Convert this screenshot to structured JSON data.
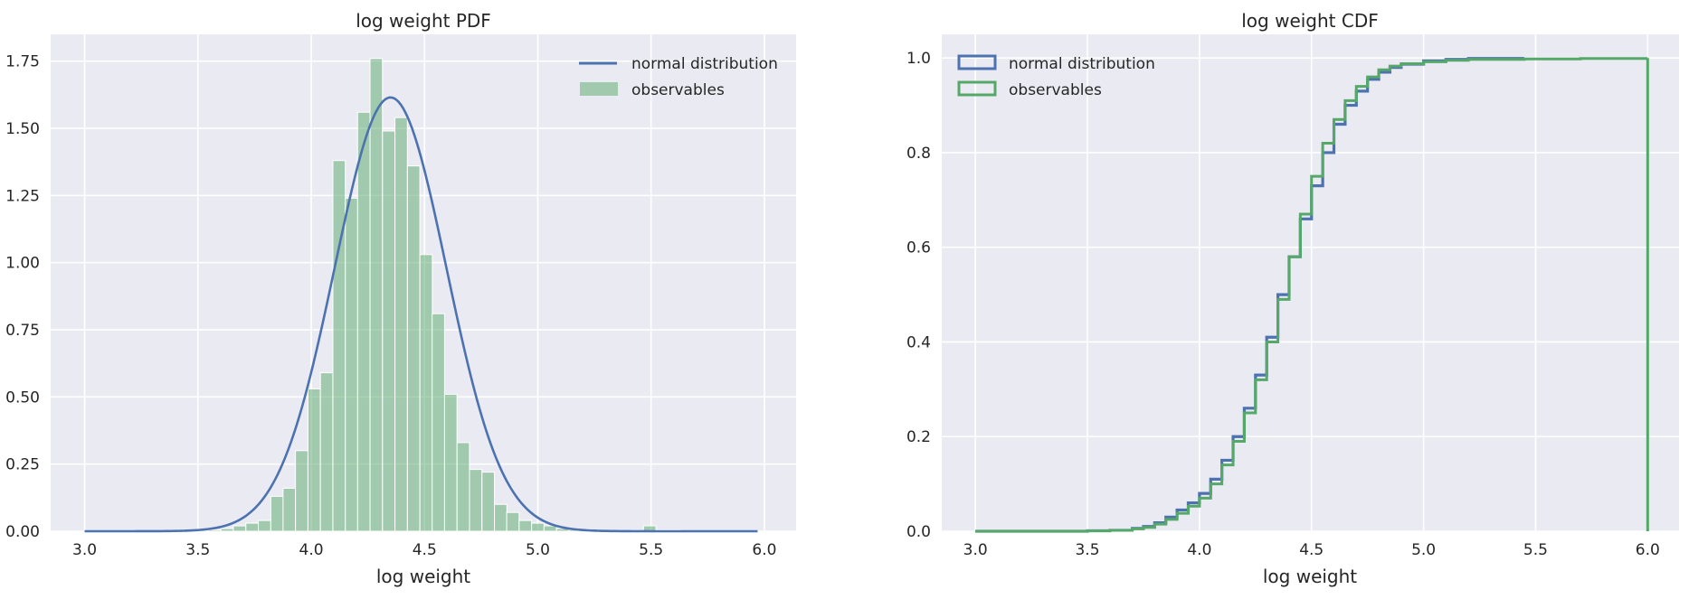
{
  "chart_data": [
    {
      "type": "bar",
      "title": "log weight PDF",
      "xlabel": "log weight",
      "ylabel": "",
      "xlim": [
        2.85,
        6.14
      ],
      "ylim": [
        0,
        1.85
      ],
      "xticks": [
        "3.0",
        "3.5",
        "4.0",
        "4.5",
        "5.0",
        "5.5",
        "6.0"
      ],
      "xtick_values": [
        3.0,
        3.5,
        4.0,
        4.5,
        5.0,
        5.5,
        6.0
      ],
      "yticks": [
        "0.00",
        "0.25",
        "0.50",
        "0.75",
        "1.00",
        "1.25",
        "1.50",
        "1.75"
      ],
      "ytick_values": [
        0,
        0.25,
        0.5,
        0.75,
        1.0,
        1.25,
        1.5,
        1.75
      ],
      "grid": true,
      "legend_position": "top-right",
      "legend": [
        {
          "label": "normal distribution",
          "kind": "line",
          "color": "#4c72b0"
        },
        {
          "label": "observables",
          "kind": "patch",
          "color": "#55a868"
        }
      ],
      "bar_color": "#55a868",
      "line_color": "#4c72b0",
      "bin_width": 0.0548,
      "bin_centers": [
        3.574,
        3.629,
        3.684,
        3.739,
        3.794,
        3.849,
        3.903,
        3.958,
        4.013,
        4.068,
        4.123,
        4.178,
        4.232,
        4.287,
        4.342,
        4.397,
        4.452,
        4.507,
        4.561,
        4.616,
        4.671,
        4.726,
        4.781,
        4.836,
        4.89,
        4.945,
        5.0,
        5.055,
        5.11,
        5.165,
        5.219,
        5.274,
        5.329,
        5.384,
        5.439,
        5.494,
        5.548,
        5.603
      ],
      "values": [
        0.005,
        0.01,
        0.02,
        0.03,
        0.04,
        0.13,
        0.16,
        0.3,
        0.53,
        0.59,
        1.38,
        1.24,
        1.56,
        1.76,
        1.49,
        1.54,
        1.36,
        1.03,
        0.81,
        0.51,
        0.33,
        0.23,
        0.22,
        0.1,
        0.07,
        0.04,
        0.03,
        0.02,
        0.01,
        0.005,
        0.0,
        0.0,
        0.0,
        0.0,
        0.005,
        0.02,
        0.005,
        0.005
      ],
      "normal_mean": 4.35,
      "normal_sd": 0.247,
      "normal_x_range": [
        3.0,
        5.97
      ]
    },
    {
      "type": "line",
      "title": "log weight CDF",
      "xlabel": "log weight",
      "ylabel": "",
      "xlim": [
        2.85,
        6.14
      ],
      "ylim": [
        0,
        1.05
      ],
      "xticks": [
        "3.0",
        "3.5",
        "4.0",
        "4.5",
        "5.0",
        "5.5",
        "6.0"
      ],
      "xtick_values": [
        3.0,
        3.5,
        4.0,
        4.5,
        5.0,
        5.5,
        6.0
      ],
      "yticks": [
        "0.0",
        "0.2",
        "0.4",
        "0.6",
        "0.8",
        "1.0"
      ],
      "ytick_values": [
        0,
        0.2,
        0.4,
        0.6,
        0.8,
        1.0
      ],
      "grid": true,
      "legend_position": "top-left",
      "legend": [
        {
          "label": "normal distribution",
          "kind": "patch-outline",
          "color": "#4c72b0"
        },
        {
          "label": "observables",
          "kind": "patch-outline",
          "color": "#55a868"
        }
      ],
      "series": [
        {
          "name": "normal distribution",
          "color": "#4c72b0",
          "x": [
            3.0,
            3.5,
            3.6,
            3.7,
            3.75,
            3.8,
            3.85,
            3.9,
            3.95,
            4.0,
            4.05,
            4.1,
            4.15,
            4.2,
            4.25,
            4.3,
            4.35,
            4.4,
            4.45,
            4.5,
            4.55,
            4.6,
            4.65,
            4.7,
            4.75,
            4.8,
            4.85,
            4.9,
            5.0,
            5.1,
            5.2,
            5.45
          ],
          "y": [
            0.0,
            0.001,
            0.002,
            0.006,
            0.01,
            0.018,
            0.03,
            0.045,
            0.06,
            0.08,
            0.11,
            0.15,
            0.2,
            0.26,
            0.33,
            0.41,
            0.5,
            0.58,
            0.66,
            0.73,
            0.8,
            0.86,
            0.9,
            0.93,
            0.955,
            0.97,
            0.98,
            0.987,
            0.994,
            0.997,
            0.999,
            1.0
          ]
        },
        {
          "name": "observables",
          "color": "#55a868",
          "x": [
            3.0,
            3.5,
            3.6,
            3.7,
            3.75,
            3.8,
            3.85,
            3.9,
            3.95,
            4.0,
            4.05,
            4.1,
            4.15,
            4.2,
            4.25,
            4.3,
            4.35,
            4.4,
            4.45,
            4.5,
            4.55,
            4.6,
            4.65,
            4.7,
            4.75,
            4.8,
            4.85,
            4.9,
            5.0,
            5.1,
            5.2,
            5.45,
            5.7,
            6.0
          ],
          "y": [
            0.0,
            0.001,
            0.002,
            0.005,
            0.008,
            0.015,
            0.025,
            0.038,
            0.053,
            0.07,
            0.1,
            0.14,
            0.19,
            0.25,
            0.32,
            0.4,
            0.49,
            0.58,
            0.67,
            0.75,
            0.82,
            0.87,
            0.91,
            0.94,
            0.96,
            0.975,
            0.983,
            0.988,
            0.992,
            0.995,
            0.997,
            0.998,
            0.999,
            1.0
          ]
        }
      ]
    }
  ]
}
